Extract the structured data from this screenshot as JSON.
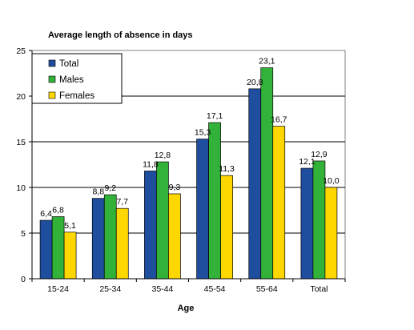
{
  "chart_data": {
    "type": "bar",
    "title": "Average length of absence in days",
    "xlabel": "Age",
    "ylabel": "",
    "categories": [
      "15-24",
      "25-34",
      "35-44",
      "45-54",
      "55-64",
      "Total"
    ],
    "series": [
      {
        "name": "Total",
        "color": "#1F4E9E",
        "values": [
          6.4,
          8.8,
          11.8,
          15.3,
          20.8,
          12.1
        ],
        "labels": [
          "6,4",
          "8,8",
          "11,8",
          "15,3",
          "20,8",
          "12,1"
        ]
      },
      {
        "name": "Males",
        "color": "#33B23A",
        "values": [
          6.8,
          9.2,
          12.8,
          17.1,
          23.1,
          12.9
        ],
        "labels": [
          "6,8",
          "9,2",
          "12,8",
          "17,1",
          "23,1",
          "12,9"
        ]
      },
      {
        "name": "Females",
        "color": "#FFD700",
        "values": [
          5.1,
          7.7,
          9.3,
          11.3,
          16.7,
          10.0
        ],
        "labels": [
          "5,1",
          "7,7",
          "9,3",
          "11,3",
          "16,7",
          "10,0"
        ]
      }
    ],
    "ylim": [
      0,
      25
    ],
    "yticks": [
      0,
      5,
      10,
      15,
      20,
      25
    ],
    "grid": true,
    "legend": "top-left"
  }
}
